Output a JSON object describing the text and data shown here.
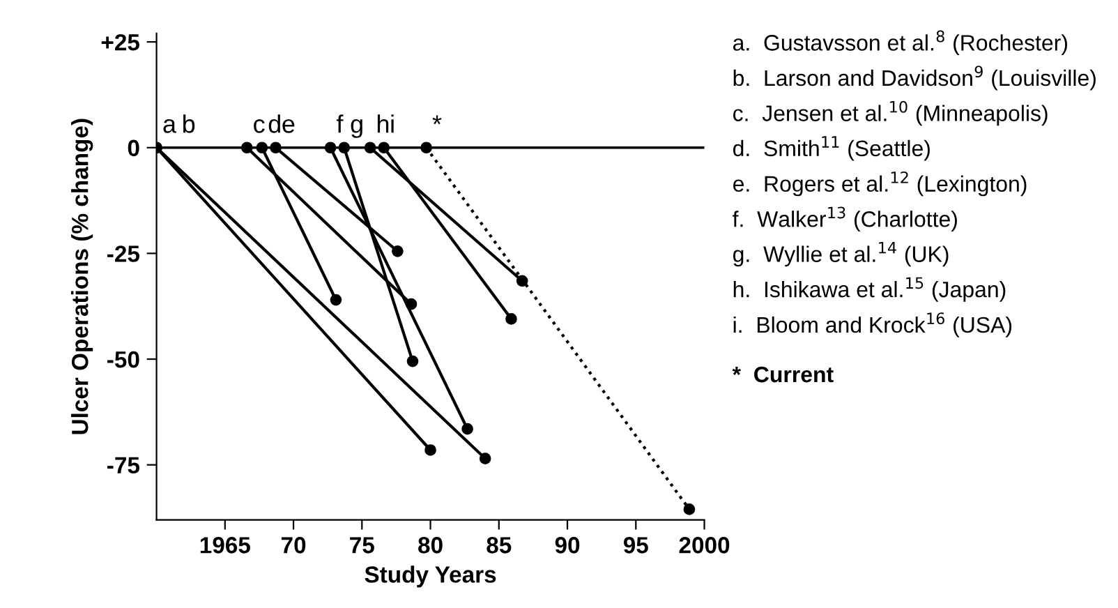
{
  "chart_data": {
    "type": "line",
    "xlabel": "Study Years",
    "ylabel": "Ulcer Operations (% change)",
    "xlim": [
      1960,
      2000
    ],
    "xticks": [
      1965,
      {
        "value": 1970,
        "label": "70"
      },
      {
        "value": 1975,
        "label": "75"
      },
      {
        "value": 1980,
        "label": "80"
      },
      {
        "value": 1985,
        "label": "85"
      },
      {
        "value": 1990,
        "label": "90"
      },
      {
        "value": 1995,
        "label": "95"
      },
      2000
    ],
    "ylim": [
      -88,
      27
    ],
    "yticks": [
      {
        "value": 25,
        "label": "+25"
      },
      0,
      -25,
      -50,
      -75
    ],
    "marker": "circle",
    "grid": false,
    "legend": false,
    "ref_lines": [
      {
        "axis": "y",
        "value": 0,
        "color": "#000000"
      }
    ],
    "series": [
      {
        "name": "a",
        "color": "#000000",
        "x": [
          1960,
          1980
        ],
        "values": [
          0,
          -71.5
        ]
      },
      {
        "name": "b",
        "color": "#000000",
        "x": [
          1960,
          1984
        ],
        "values": [
          0,
          -73.5
        ]
      },
      {
        "name": "c",
        "color": "#000000",
        "x": [
          1966.6,
          1978.6
        ],
        "values": [
          0,
          -37
        ]
      },
      {
        "name": "d",
        "color": "#000000",
        "x": [
          1967.7,
          1973.1
        ],
        "values": [
          0,
          -36
        ]
      },
      {
        "name": "e",
        "color": "#000000",
        "x": [
          1968.7,
          1977.6
        ],
        "values": [
          0,
          -24.5
        ]
      },
      {
        "name": "f",
        "color": "#000000",
        "x": [
          1972.7,
          1982.7
        ],
        "values": [
          0,
          -66.5
        ]
      },
      {
        "name": "g",
        "color": "#000000",
        "x": [
          1973.7,
          1978.7
        ],
        "values": [
          0,
          -50.5
        ]
      },
      {
        "name": "h",
        "color": "#000000",
        "x": [
          1975.6,
          1986.7
        ],
        "values": [
          0,
          -31.5
        ]
      },
      {
        "name": "i",
        "color": "#000000",
        "x": [
          1976.6,
          1985.9
        ],
        "values": [
          0,
          -40.5
        ]
      },
      {
        "name": "*",
        "color": "#000000",
        "line_style": "dotted",
        "x": [
          1979.7,
          1998.9
        ],
        "values": [
          0,
          -85.5
        ]
      }
    ],
    "annotations": [
      "a.  Gustavsson et al.$^{8}$ (Rochester)",
      "b.  Larson and Davidson$^{9}$ (Louisville)",
      "c.  Jensen et al.$^{10}$ (Minneapolis)",
      "d.  Smith$^{11}$ (Seattle)",
      "e.  Rogers et al.$^{12}$ (Lexington)",
      "f.  Walker$^{13}$ (Charlotte)",
      "g.  Wyllie et al.$^{14}$ (UK)",
      "h.  Ishikawa et al.$^{15}$ (Japan)",
      "i.  Bloom and Krock$^{16}$ (USA)",
      "*  Current"
    ]
  }
}
